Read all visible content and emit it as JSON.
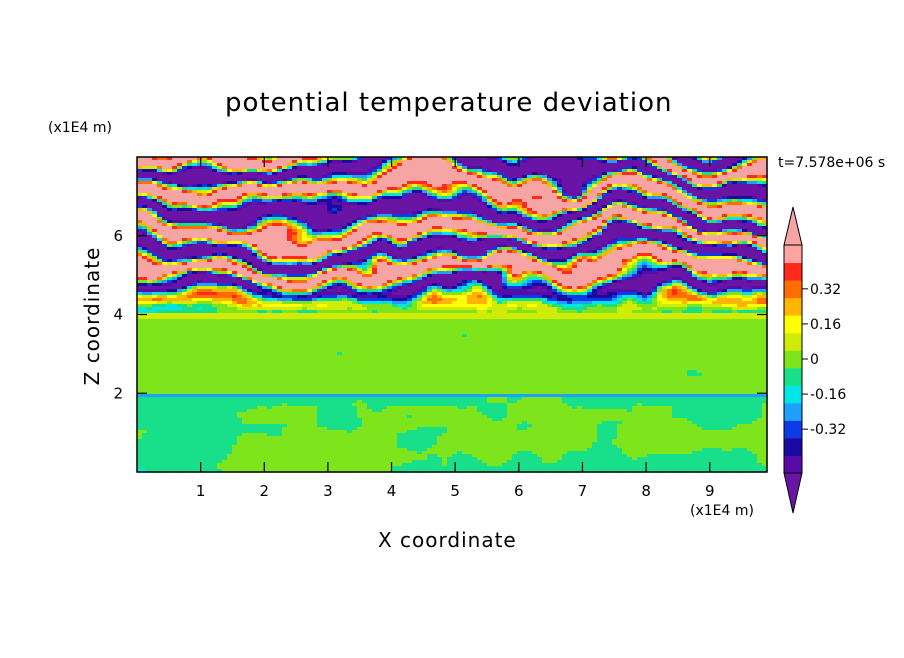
{
  "chart_data": {
    "type": "heatmap",
    "title": "potential temperature deviation",
    "xlabel": "X coordinate",
    "ylabel": "Z coordinate",
    "x_unit": "(x1E4 m)",
    "y_unit": "(x1E4 m)",
    "time_label": "t=7.578e+06 s",
    "xlim": [
      0,
      9.9
    ],
    "ylim": [
      0,
      8
    ],
    "x_ticks": [
      "1",
      "2",
      "3",
      "4",
      "5",
      "6",
      "7",
      "8",
      "9"
    ],
    "y_ticks": [
      "2",
      "4",
      "6"
    ],
    "colorbar": {
      "levels": [
        -0.48,
        -0.4,
        -0.32,
        -0.24,
        -0.16,
        -0.08,
        0,
        0.08,
        0.16,
        0.24,
        0.32,
        0.4,
        0.48
      ],
      "tick_labels": [
        "0.32",
        "0.16",
        "0",
        "-0.16",
        "-0.32"
      ],
      "tick_values": [
        0.32,
        0.16,
        0,
        -0.16,
        -0.32
      ],
      "colors_low_to_high": [
        "#5a0aa6",
        "#1a0aa2",
        "#0b3be6",
        "#1fa0ff",
        "#00e6e6",
        "#18e08a",
        "#7ee41c",
        "#d0ec06",
        "#ffff00",
        "#ffb400",
        "#ff6e00",
        "#ff2a1c",
        "#ffa3a3"
      ],
      "under_color": "#6a14a6",
      "over_color": "#f6a4a4"
    },
    "structure": [
      {
        "z_range": [
          0,
          2
        ],
        "description": "mostly 0 to -0.08, with +0.08 plumes"
      },
      {
        "z_range": [
          2,
          4
        ],
        "description": "near-uniform 0 to +0.08 layers"
      },
      {
        "z_range": [
          4,
          8
        ],
        "description": "alternating strong positive and negative horizontal bands"
      }
    ]
  }
}
